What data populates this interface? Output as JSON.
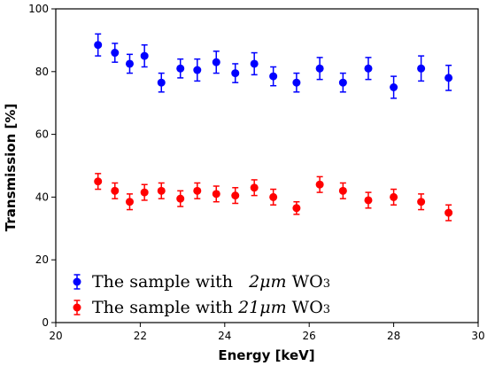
{
  "chart_data": {
    "type": "scatter",
    "xlabel": "Energy [keV]",
    "ylabel": "Transmission [%]",
    "xlim": [
      20,
      30
    ],
    "ylim": [
      0,
      100
    ],
    "xticks": [
      20,
      22,
      24,
      26,
      28,
      30
    ],
    "yticks": [
      0,
      20,
      40,
      60,
      80,
      100
    ],
    "grid": false,
    "legend_position": "bottom-left",
    "series": [
      {
        "name_parts": [
          "The sample with ",
          "2",
          "μm",
          " WO",
          "3"
        ],
        "color": "#0000ff",
        "x": [
          21.0,
          21.4,
          21.75,
          22.1,
          22.5,
          22.95,
          23.35,
          23.8,
          24.25,
          24.7,
          25.15,
          25.7,
          26.25,
          26.8,
          27.4,
          28.0,
          28.65,
          29.3
        ],
        "y": [
          88.5,
          86.0,
          82.5,
          85.0,
          76.5,
          81.0,
          80.5,
          83.0,
          79.5,
          82.5,
          78.5,
          76.5,
          81.0,
          76.5,
          81.0,
          75.0,
          81.0,
          78.0
        ],
        "err": [
          3.5,
          3.0,
          3.0,
          3.5,
          3.0,
          3.0,
          3.5,
          3.5,
          3.0,
          3.5,
          3.0,
          3.0,
          3.5,
          3.0,
          3.5,
          3.5,
          4.0,
          4.0
        ]
      },
      {
        "name_parts": [
          "The sample with ",
          "21",
          "μm",
          " WO",
          "3"
        ],
        "color": "#ff0000",
        "x": [
          21.0,
          21.4,
          21.75,
          22.1,
          22.5,
          22.95,
          23.35,
          23.8,
          24.25,
          24.7,
          25.15,
          25.7,
          26.25,
          26.8,
          27.4,
          28.0,
          28.65,
          29.3
        ],
        "y": [
          45.0,
          42.0,
          38.5,
          41.5,
          42.0,
          39.5,
          42.0,
          41.0,
          40.5,
          43.0,
          40.0,
          36.5,
          44.0,
          42.0,
          39.0,
          40.0,
          38.5,
          35.0
        ],
        "err": [
          2.5,
          2.5,
          2.5,
          2.5,
          2.5,
          2.5,
          2.5,
          2.5,
          2.5,
          2.5,
          2.5,
          2.0,
          2.5,
          2.5,
          2.5,
          2.5,
          2.5,
          2.5
        ]
      }
    ]
  }
}
